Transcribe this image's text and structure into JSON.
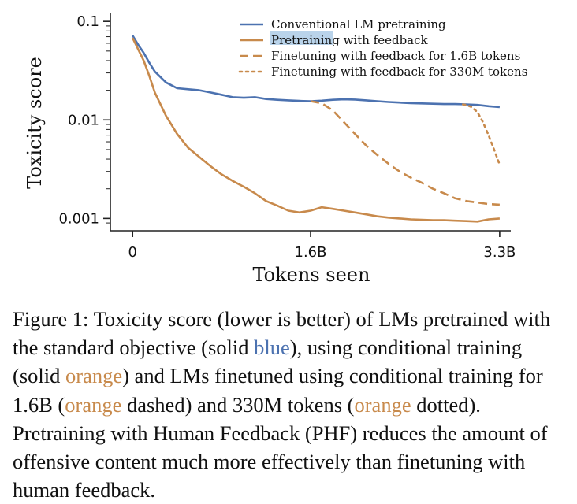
{
  "chart_data": {
    "type": "line",
    "xlabel": "Tokens seen",
    "ylabel": "Toxicity score",
    "yscale": "log",
    "x_unit": "billion tokens",
    "xlim": [
      -0.2,
      3.4
    ],
    "ylim": [
      0.00075,
      0.11
    ],
    "x_ticks": [
      {
        "v": 0,
        "label": "0"
      },
      {
        "v": 1.6,
        "label": "1.6B"
      },
      {
        "v": 3.3,
        "label": "3.3B"
      }
    ],
    "y_ticks": [
      {
        "v": 0.1,
        "label": "0.1"
      },
      {
        "v": 0.01,
        "label": "0.01"
      },
      {
        "v": 0.001,
        "label": "0.001"
      }
    ],
    "legend_position": "top-right",
    "series": [
      {
        "name": "Conventional LM pretraining",
        "color": "#4c72b0",
        "dash": "solid",
        "x": [
          0,
          0.05,
          0.1,
          0.15,
          0.2,
          0.3,
          0.4,
          0.5,
          0.6,
          0.7,
          0.8,
          0.9,
          1.0,
          1.1,
          1.2,
          1.3,
          1.4,
          1.5,
          1.6,
          1.7,
          1.8,
          1.9,
          2.0,
          2.1,
          2.2,
          2.3,
          2.4,
          2.5,
          2.6,
          2.7,
          2.8,
          2.9,
          3.0,
          3.1,
          3.2,
          3.3
        ],
        "y": [
          0.072,
          0.058,
          0.048,
          0.038,
          0.031,
          0.024,
          0.021,
          0.0205,
          0.02,
          0.019,
          0.018,
          0.017,
          0.0168,
          0.017,
          0.0163,
          0.016,
          0.0158,
          0.0156,
          0.0155,
          0.0157,
          0.016,
          0.0162,
          0.0161,
          0.0158,
          0.0155,
          0.0152,
          0.015,
          0.0148,
          0.0147,
          0.0146,
          0.0145,
          0.0145,
          0.0144,
          0.0142,
          0.0138,
          0.0135
        ]
      },
      {
        "name": "Pretraining with feedback",
        "color": "#c88a4c",
        "dash": "solid",
        "x": [
          0,
          0.05,
          0.1,
          0.15,
          0.2,
          0.3,
          0.4,
          0.5,
          0.6,
          0.7,
          0.8,
          0.9,
          1.0,
          1.1,
          1.2,
          1.3,
          1.4,
          1.5,
          1.6,
          1.7,
          1.8,
          1.9,
          2.0,
          2.1,
          2.2,
          2.3,
          2.4,
          2.5,
          2.6,
          2.7,
          2.8,
          2.9,
          3.0,
          3.1,
          3.2,
          3.3
        ],
        "y": [
          0.068,
          0.052,
          0.04,
          0.028,
          0.019,
          0.011,
          0.0072,
          0.0052,
          0.0042,
          0.0034,
          0.0028,
          0.0024,
          0.0021,
          0.0018,
          0.0015,
          0.00135,
          0.0012,
          0.00115,
          0.0012,
          0.0013,
          0.00125,
          0.0012,
          0.00115,
          0.0011,
          0.00105,
          0.00102,
          0.001,
          0.00098,
          0.00097,
          0.00096,
          0.00096,
          0.00095,
          0.00094,
          0.00093,
          0.00098,
          0.001
        ]
      },
      {
        "name": "Finetuning with feedback for 1.6B tokens",
        "color": "#c88a4c",
        "dash": "dashed",
        "x": [
          1.6,
          1.7,
          1.8,
          1.9,
          2.0,
          2.1,
          2.2,
          2.3,
          2.4,
          2.5,
          2.6,
          2.7,
          2.8,
          2.9,
          3.0,
          3.1,
          3.2,
          3.3
        ],
        "y": [
          0.0155,
          0.0148,
          0.0125,
          0.0095,
          0.0072,
          0.0055,
          0.0044,
          0.0036,
          0.003,
          0.0026,
          0.0023,
          0.002,
          0.0018,
          0.0016,
          0.0015,
          0.00145,
          0.0014,
          0.00138
        ]
      },
      {
        "name": "Finetuning with feedback for 330M tokens",
        "color": "#c88a4c",
        "dash": "dotted",
        "x": [
          2.97,
          3.0,
          3.05,
          3.1,
          3.15,
          3.2,
          3.25,
          3.3
        ],
        "y": [
          0.0144,
          0.0142,
          0.0135,
          0.012,
          0.0095,
          0.007,
          0.005,
          0.0035
        ]
      }
    ]
  },
  "caption": {
    "p1": "Figure 1: Toxicity score (lower is better) of LMs pretrained with the standard objective (solid ",
    "blue_word": "blue",
    "p2": "), using conditional training (solid ",
    "orange_word_1": "orange",
    "p3": ") and LMs finetuned using conditional training for 1.6B (",
    "orange_word_2": "orange",
    "p4": " dashed) and 330M tokens (",
    "orange_word_3": "orange",
    "p5": " dotted). Pretraining with Human Feedback (PHF) reduces the amount of offensive content much more effectively than finetuning with human feedback."
  }
}
